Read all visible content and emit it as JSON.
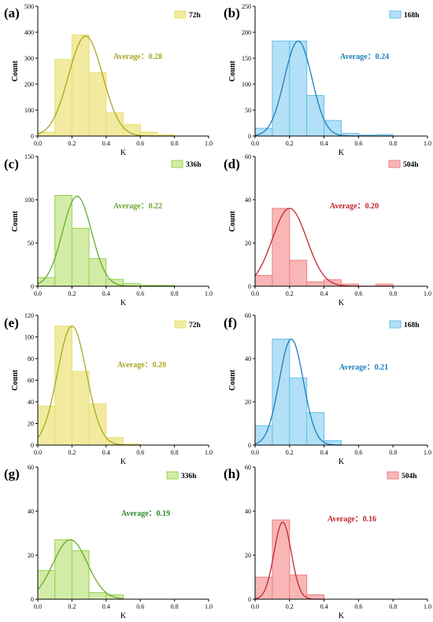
{
  "chart_data": [
    {
      "type": "bar",
      "panel": "(a)",
      "legend": "72h",
      "annotation": "Average：0.28",
      "color": "#e8e070",
      "fill": "#f2eaa0",
      "curve_color": "#a6a820",
      "text_color": "#a6a820",
      "bin_edges": [
        0.0,
        0.1,
        0.2,
        0.3,
        0.4,
        0.5,
        0.6,
        0.7,
        0.8
      ],
      "values": [
        15,
        295,
        390,
        245,
        90,
        45,
        15,
        5
      ],
      "curve": {
        "mean": 0.28,
        "sd": 0.1,
        "peak": 385
      },
      "xlabel": "K",
      "ylabel": "Count",
      "xlim": [
        0,
        1
      ],
      "ylim": [
        0,
        500
      ],
      "xticks": [
        "0.0",
        "0.2",
        "0.4",
        "0.6",
        "0.8",
        "1.0"
      ],
      "yticks": [
        "0",
        "100",
        "200",
        "300",
        "400",
        "500"
      ]
    },
    {
      "type": "bar",
      "panel": "(b)",
      "legend": "168h",
      "annotation": "Average：0.24",
      "color": "#66c0ea",
      "fill": "#b2e0f6",
      "curve_color": "#1c7fbf",
      "text_color": "#1c7fbf",
      "bin_edges": [
        0.0,
        0.1,
        0.2,
        0.3,
        0.4,
        0.5,
        0.6,
        0.7,
        0.8
      ],
      "values": [
        15,
        183,
        183,
        78,
        30,
        5,
        2,
        3
      ],
      "curve": {
        "mean": 0.25,
        "sd": 0.08,
        "peak": 183
      },
      "xlabel": "K",
      "ylabel": "Count",
      "xlim": [
        0,
        1
      ],
      "ylim": [
        0,
        250
      ],
      "xticks": [
        "0.0",
        "0.2",
        "0.4",
        "0.6",
        "0.8",
        "1.0"
      ],
      "yticks": [
        "0",
        "50",
        "100",
        "150",
        "200",
        "250"
      ]
    },
    {
      "type": "bar",
      "panel": "(c)",
      "legend": "336h",
      "annotation": "Average：0.22",
      "color": "#94d44a",
      "fill": "#d2eca8",
      "curve_color": "#6aa830",
      "text_color": "#6aa830",
      "bin_edges": [
        0.0,
        0.1,
        0.2,
        0.3,
        0.4,
        0.5,
        0.6,
        0.7,
        0.8
      ],
      "values": [
        10,
        105,
        67,
        32,
        8,
        3,
        1,
        1
      ],
      "curve": {
        "mean": 0.23,
        "sd": 0.085,
        "peak": 104
      },
      "xlabel": "K",
      "ylabel": "Count",
      "xlim": [
        0,
        1
      ],
      "ylim": [
        0,
        150
      ],
      "xticks": [
        "0.0",
        "0.2",
        "0.4",
        "0.6",
        "0.8",
        "1.0"
      ],
      "yticks": [
        "0",
        "50",
        "100",
        "150"
      ]
    },
    {
      "type": "bar",
      "panel": "(d)",
      "legend": "504h",
      "annotation": "Average：0.20",
      "color": "#ee7f7f",
      "fill": "#f8b6b6",
      "curve_color": "#c0282e",
      "text_color": "#c0282e",
      "bin_edges": [
        0.0,
        0.1,
        0.2,
        0.3,
        0.4,
        0.5,
        0.6,
        0.7,
        0.8
      ],
      "values": [
        5,
        36,
        12,
        2,
        3,
        1,
        0,
        1
      ],
      "curve": {
        "mean": 0.2,
        "sd": 0.1,
        "peak": 36
      },
      "xlabel": "K",
      "ylabel": "Count",
      "xlim": [
        0,
        1
      ],
      "ylim": [
        0,
        60
      ],
      "xticks": [
        "0.0",
        "0.2",
        "0.4",
        "0.6",
        "0.8",
        "1.0"
      ],
      "yticks": [
        "0",
        "20",
        "40",
        "60"
      ]
    },
    {
      "type": "bar",
      "panel": "(e)",
      "legend": "72h",
      "annotation": "Average：0.20",
      "color": "#e8e070",
      "fill": "#f2eaa0",
      "curve_color": "#a6a820",
      "text_color": "#a6a820",
      "bin_edges": [
        0.0,
        0.1,
        0.2,
        0.3,
        0.4,
        0.5,
        0.6
      ],
      "values": [
        36,
        110,
        68,
        38,
        7,
        1
      ],
      "curve": {
        "mean": 0.2,
        "sd": 0.085,
        "peak": 110
      },
      "xlabel": "K",
      "ylabel": "Count",
      "xlim": [
        0,
        1
      ],
      "ylim": [
        0,
        120
      ],
      "xticks": [
        "0.0",
        "0.2",
        "0.4",
        "0.6",
        "0.8",
        "1.0"
      ],
      "yticks": [
        "0",
        "20",
        "40",
        "60",
        "80",
        "100",
        "120"
      ]
    },
    {
      "type": "bar",
      "panel": "(f)",
      "legend": "168h",
      "annotation": "Average：0.21",
      "color": "#66c0ea",
      "fill": "#b2e0f6",
      "curve_color": "#1c7fbf",
      "text_color": "#1c7fbf",
      "bin_edges": [
        0.0,
        0.1,
        0.2,
        0.3,
        0.4,
        0.5
      ],
      "values": [
        9,
        49,
        31,
        15,
        2
      ],
      "curve": {
        "mean": 0.21,
        "sd": 0.07,
        "peak": 49
      },
      "xlabel": "K",
      "ylabel": "Count",
      "xlim": [
        0,
        1
      ],
      "ylim": [
        0,
        60
      ],
      "xticks": [
        "0.0",
        "0.2",
        "0.4",
        "0.6",
        "0.8",
        "1.0"
      ],
      "yticks": [
        "0",
        "20",
        "40",
        "60"
      ]
    },
    {
      "type": "bar",
      "panel": "(g)",
      "legend": "336h",
      "annotation": "Average：0.19",
      "color": "#94d44a",
      "fill": "#d2eca8",
      "curve_color": "#6aa830",
      "text_color": "#2e8a2e",
      "bin_edges": [
        0.0,
        0.1,
        0.2,
        0.3,
        0.4,
        0.5
      ],
      "values": [
        13,
        27,
        22,
        3,
        2
      ],
      "curve": {
        "mean": 0.19,
        "sd": 0.1,
        "peak": 27
      },
      "xlabel": "K",
      "ylabel": "",
      "xlim": [
        0,
        1
      ],
      "ylim": [
        0,
        60
      ],
      "xticks": [
        "0.0",
        "0.2",
        "0.4",
        "0.6",
        "0.8",
        "1.0"
      ],
      "yticks": [
        "0",
        "20",
        "40",
        "60"
      ]
    },
    {
      "type": "bar",
      "panel": "(h)",
      "legend": "504h",
      "annotation": "Average：0.16",
      "color": "#ee7f7f",
      "fill": "#f8b6b6",
      "curve_color": "#c0282e",
      "text_color": "#c0282e",
      "bin_edges": [
        0.0,
        0.1,
        0.2,
        0.3,
        0.4
      ],
      "values": [
        10,
        36,
        11,
        2
      ],
      "curve": {
        "mean": 0.16,
        "sd": 0.05,
        "peak": 35
      },
      "xlabel": "K",
      "ylabel": "",
      "xlim": [
        0,
        1
      ],
      "ylim": [
        0,
        60
      ],
      "xticks": [
        "0.0",
        "0.2",
        "0.4",
        "0.6",
        "0.8",
        "1.0"
      ],
      "yticks": [
        "0",
        "20",
        "40",
        "60"
      ]
    }
  ]
}
